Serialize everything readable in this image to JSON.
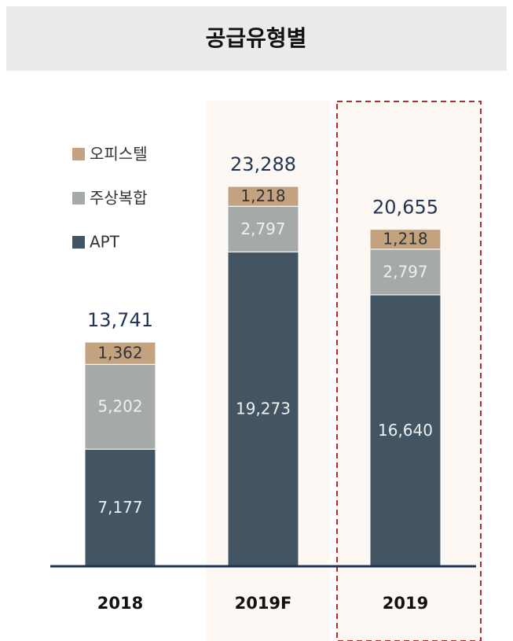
{
  "chart_data": {
    "type": "stacked-bar",
    "title": "공급유형별",
    "categories": [
      "2018",
      "2019F",
      "2019"
    ],
    "series": [
      {
        "name": "APT",
        "color": "#435462",
        "values": [
          7177,
          19273,
          16640
        ],
        "value_labels": [
          "7,177",
          "19,273",
          "16,640"
        ]
      },
      {
        "name": "주상복합",
        "color": "#a5aaa8",
        "values": [
          5202,
          2797,
          2797
        ],
        "value_labels": [
          "5,202",
          "2,797",
          "2,797"
        ]
      },
      {
        "name": "오피스텔",
        "color": "#c3a27f",
        "values": [
          1362,
          1218,
          1218
        ],
        "value_labels": [
          "1,362",
          "1,218",
          "1,218"
        ]
      }
    ],
    "totals": [
      13741,
      23288,
      20655
    ],
    "total_labels": [
      "13,741",
      "23,288",
      "20,655"
    ]
  }
}
